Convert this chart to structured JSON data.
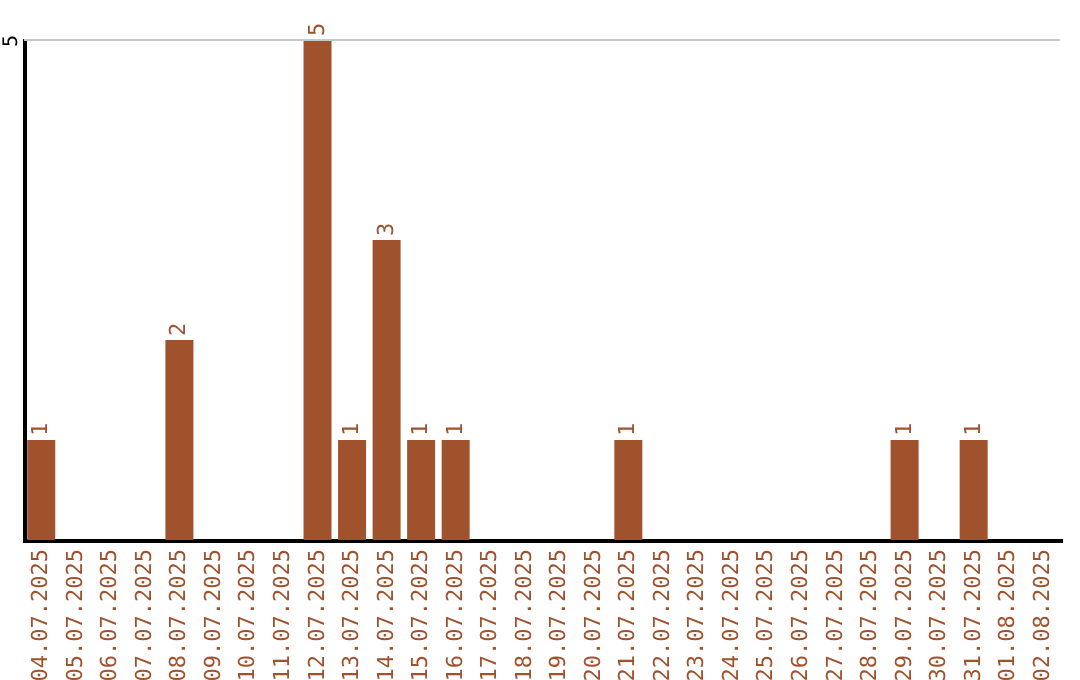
{
  "chart_data": {
    "type": "bar",
    "categories": [
      "04.07.2025",
      "05.07.2025",
      "06.07.2025",
      "07.07.2025",
      "08.07.2025",
      "09.07.2025",
      "10.07.2025",
      "11.07.2025",
      "12.07.2025",
      "13.07.2025",
      "14.07.2025",
      "15.07.2025",
      "16.07.2025",
      "17.07.2025",
      "18.07.2025",
      "19.07.2025",
      "20.07.2025",
      "21.07.2025",
      "22.07.2025",
      "23.07.2025",
      "24.07.2025",
      "25.07.2025",
      "26.07.2025",
      "27.07.2025",
      "28.07.2025",
      "29.07.2025",
      "30.07.2025",
      "31.07.2025",
      "01.08.2025",
      "02.08.2025"
    ],
    "values": [
      1,
      0,
      0,
      0,
      2,
      0,
      0,
      0,
      5,
      1,
      3,
      1,
      1,
      0,
      0,
      0,
      0,
      1,
      0,
      0,
      0,
      0,
      0,
      0,
      0,
      1,
      0,
      1,
      0,
      0
    ],
    "color": "#a0522d",
    "value_labels": [
      "1",
      null,
      null,
      null,
      "2",
      null,
      null,
      null,
      "5",
      "1",
      "3",
      "1",
      "1",
      null,
      null,
      null,
      null,
      "1",
      null,
      null,
      null,
      null,
      null,
      null,
      null,
      "1",
      null,
      "1",
      null,
      null
    ],
    "ylim": [
      0,
      5
    ],
    "yticks": [
      5
    ],
    "ref_lines": [
      {
        "axis": "y",
        "value": 5,
        "color": "#c8c8c8"
      }
    ]
  }
}
